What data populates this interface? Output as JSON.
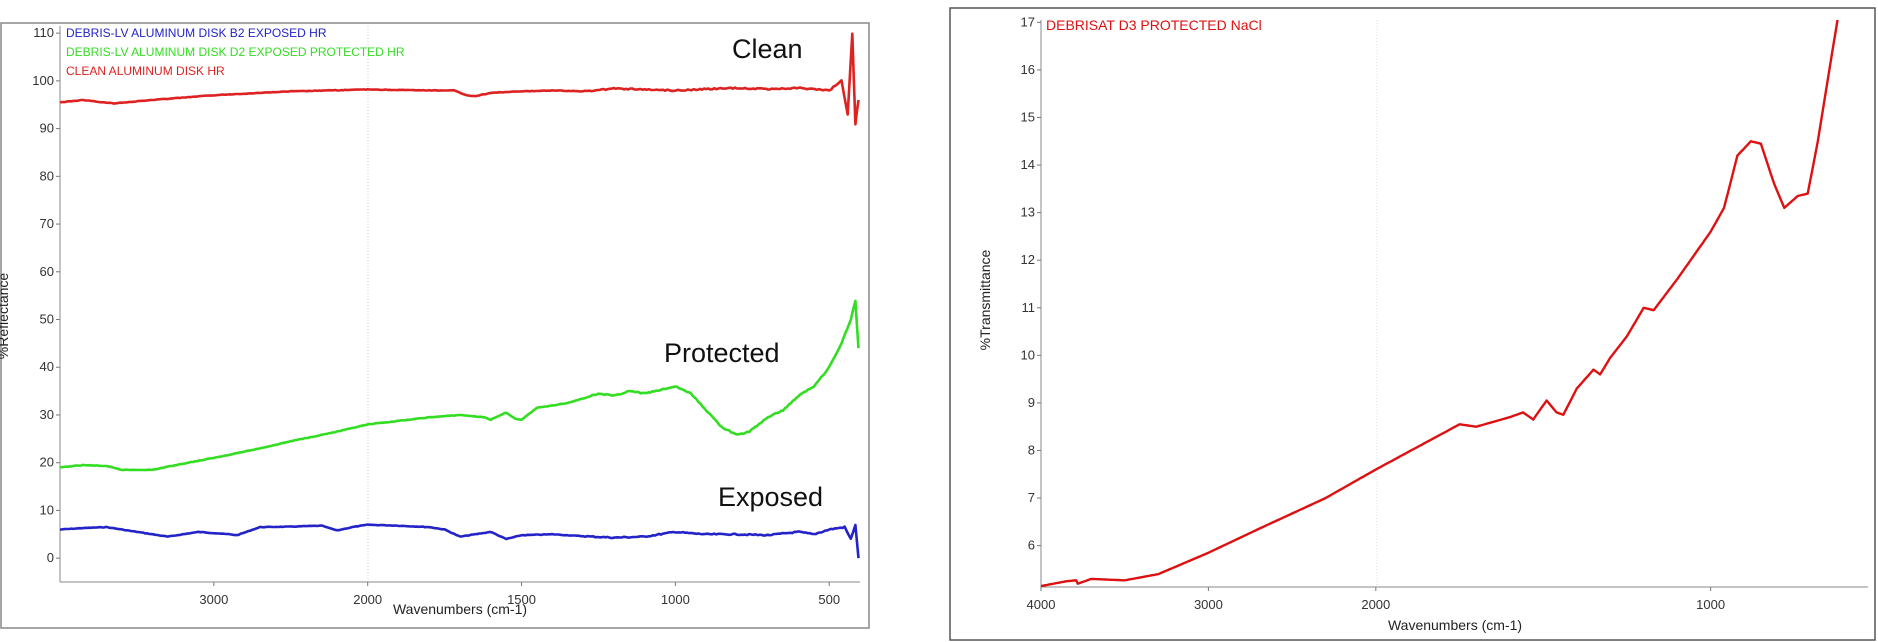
{
  "chart_data": [
    {
      "type": "line",
      "xlabel": "Wavenumbers (cm-1)",
      "ylabel": "%Reflectance",
      "xlim": [
        4000,
        400
      ],
      "x_scale_break": 2000,
      "ylim": [
        -5,
        111.5
      ],
      "xticks": [
        3000,
        2000,
        1500,
        1000,
        500
      ],
      "yticks": [
        0,
        10,
        20,
        30,
        40,
        50,
        60,
        70,
        80,
        90,
        100,
        110
      ],
      "grid": "vertical line at 2000",
      "legend": "top-left",
      "annotations": [
        {
          "text": "Clean",
          "series": 2
        },
        {
          "text": "Protected",
          "series": 1
        },
        {
          "text": "Exposed",
          "series": 0
        }
      ],
      "series": [
        {
          "name": "DEBRIS-LV ALUMINUM DISK B2 EXPOSED HR",
          "color": "#2323c8",
          "x": [
            4000,
            3850,
            3700,
            3500,
            3300,
            3100,
            2900,
            2850,
            2700,
            2500,
            2300,
            2200,
            2100,
            2000,
            1900,
            1800,
            1750,
            1700,
            1650,
            1600,
            1550,
            1500,
            1400,
            1300,
            1200,
            1100,
            1000,
            950,
            900,
            800,
            700,
            600,
            550,
            500,
            450,
            430,
            415,
            405
          ],
          "y": [
            6,
            6.3,
            6.5,
            5.5,
            4.5,
            5.5,
            5,
            4.8,
            6.5,
            6.6,
            6.8,
            5.8,
            6.5,
            7,
            6.8,
            6.5,
            6,
            4.5,
            5,
            5.5,
            4,
            4.8,
            5,
            4.6,
            4.3,
            4.5,
            5.5,
            5.2,
            5,
            5,
            4.8,
            5.5,
            5,
            6,
            6.5,
            4,
            7,
            0
          ]
        },
        {
          "name": "DEBRIS-LV ALUMINUM DISK D2 EXPOSED PROTECTED  HR",
          "color": "#33dd22",
          "x": [
            4000,
            3850,
            3700,
            3600,
            3400,
            3200,
            3000,
            2700,
            2500,
            2200,
            2000,
            1800,
            1700,
            1620,
            1600,
            1550,
            1520,
            1500,
            1450,
            1350,
            1250,
            1200,
            1150,
            1100,
            1050,
            1000,
            950,
            900,
            850,
            800,
            760,
            700,
            650,
            600,
            550,
            500,
            460,
            430,
            415,
            405
          ],
          "y": [
            19,
            19.5,
            19.3,
            18.5,
            18.5,
            19.8,
            21,
            23,
            24.5,
            26.5,
            28,
            29.5,
            30,
            29.5,
            29,
            30.5,
            29.2,
            29,
            31.5,
            32.5,
            34.5,
            34,
            35,
            34.5,
            35.2,
            36,
            34.5,
            31,
            27.5,
            25.8,
            26.5,
            29.5,
            31,
            34,
            36,
            40,
            45,
            50,
            54,
            44
          ]
        },
        {
          "name": "CLEAN ALUMINUM DISK HR",
          "color": "#dd2222",
          "x": [
            4000,
            3850,
            3750,
            3650,
            3400,
            3000,
            2700,
            2500,
            2000,
            1800,
            1720,
            1680,
            1650,
            1600,
            1500,
            1400,
            1300,
            1200,
            1100,
            1000,
            900,
            800,
            700,
            600,
            500,
            460,
            440,
            425,
            415,
            405
          ],
          "y": [
            95.5,
            96,
            95.6,
            95.3,
            96,
            97,
            97.5,
            97.8,
            98.2,
            98,
            98,
            97,
            96.8,
            97.5,
            97.8,
            98,
            97.8,
            98.4,
            98.2,
            98,
            98.3,
            98.5,
            98.3,
            98.5,
            98,
            100,
            93,
            110,
            91,
            96
          ]
        }
      ]
    },
    {
      "type": "line",
      "xlabel": "Wavenumbers (cm-1)",
      "ylabel": "%Transmittance",
      "xlim": [
        4000,
        530
      ],
      "x_scale_break": 2000,
      "ylim": [
        5.13,
        17.05
      ],
      "xticks": [
        4000,
        3000,
        2000,
        1000
      ],
      "yticks": [
        6,
        7,
        8,
        9,
        10,
        11,
        12,
        13,
        14,
        15,
        16,
        17
      ],
      "grid": "vertical line at 2000",
      "legend": "top-left",
      "series": [
        {
          "name": "DEBRISAT D3 PROTECTED NaCl",
          "color": "#dd1111",
          "x": [
            4000,
            3850,
            3790,
            3780,
            3700,
            3500,
            3300,
            3000,
            2700,
            2300,
            2000,
            1750,
            1700,
            1600,
            1560,
            1530,
            1490,
            1460,
            1440,
            1400,
            1350,
            1330,
            1300,
            1250,
            1200,
            1170,
            1100,
            1000,
            960,
            920,
            880,
            850,
            810,
            780,
            740,
            710,
            680,
            620
          ],
          "y": [
            5.15,
            5.25,
            5.27,
            5.2,
            5.3,
            5.27,
            5.4,
            5.85,
            6.35,
            7.0,
            7.6,
            8.55,
            8.5,
            8.7,
            8.8,
            8.65,
            9.05,
            8.8,
            8.75,
            9.3,
            9.7,
            9.6,
            9.95,
            10.4,
            11.0,
            10.95,
            11.6,
            12.6,
            13.1,
            14.2,
            14.5,
            14.45,
            13.6,
            13.1,
            13.35,
            13.4,
            14.5,
            17.1
          ]
        }
      ]
    }
  ]
}
